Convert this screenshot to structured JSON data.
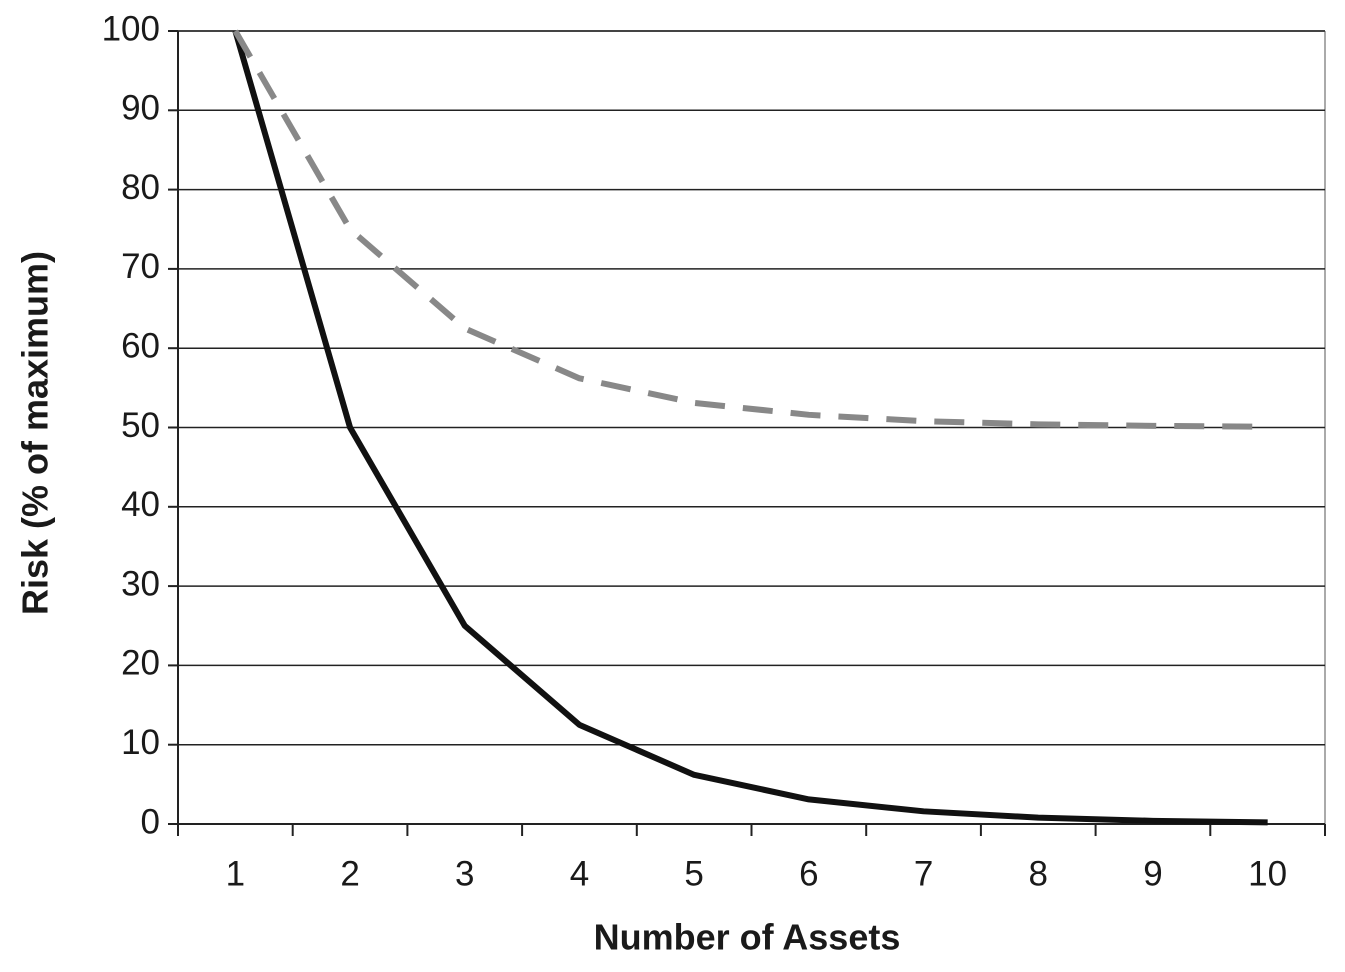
{
  "chart_data": {
    "type": "line",
    "x_label": "Number of Assets",
    "y_label": "Risk (% of maximum)",
    "categories": [
      "1",
      "2",
      "3",
      "4",
      "5",
      "6",
      "7",
      "8",
      "9",
      "10"
    ],
    "series": [
      {
        "color": "#111111",
        "style": "solid",
        "values": [
          100,
          50,
          25,
          12.5,
          6.2,
          3.1,
          1.6,
          0.8,
          0.4,
          0.2
        ]
      },
      {
        "color": "#888888",
        "style": "dashed",
        "values": [
          100,
          75,
          62.5,
          56.2,
          53.1,
          51.6,
          50.8,
          50.4,
          50.2,
          50.1
        ]
      }
    ],
    "ylim": [
      0,
      100
    ],
    "yticks": [
      0,
      10,
      20,
      30,
      40,
      50,
      60,
      70,
      80,
      90,
      100
    ],
    "grid": true
  }
}
